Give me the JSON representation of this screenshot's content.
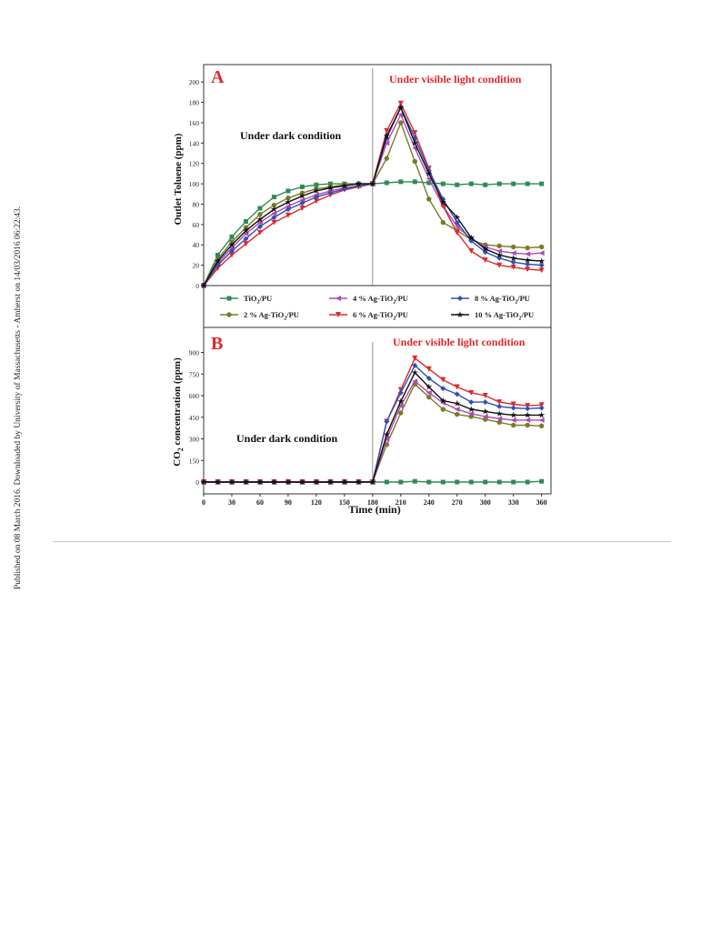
{
  "side_note": "Published on 08 March 2016. Downloaded by University of Massachusetts - Amherst on 14/03/2016 06:22:43.",
  "colors": {
    "TiO2/PU": "#2e8b57",
    "2 % Ag-TiO2/PU": "#7a7a2a",
    "4 % Ag-TiO2/PU": "#b04ab4",
    "6 % Ag-TiO2/PU": "#e0282a",
    "8 % Ag-TiO2/PU": "#3050b8",
    "10 % Ag-TiO2/PU": "#111111",
    "annotation_red": "#e0282a"
  },
  "chart_data": [
    {
      "panel": "A",
      "type": "line",
      "ylabel": "Outlet Toluene (ppm)",
      "xlabel": "",
      "annotations": [
        "Under dark condition",
        "Under visible light condition"
      ],
      "xlim": [
        0,
        370
      ],
      "ylim": [
        0,
        210
      ],
      "yticks": [
        0,
        20,
        40,
        60,
        80,
        100,
        120,
        140,
        160,
        180,
        200
      ],
      "divider_x": 180,
      "x": [
        0,
        15,
        30,
        45,
        60,
        75,
        90,
        105,
        120,
        135,
        150,
        165,
        180,
        195,
        210,
        225,
        240,
        255,
        270,
        285,
        300,
        315,
        330,
        345,
        360
      ],
      "series": [
        {
          "name": "TiO2/PU",
          "values": [
            0,
            30,
            48,
            63,
            76,
            87,
            93,
            97,
            99,
            100,
            100,
            100,
            100,
            101,
            102,
            102,
            101,
            100,
            99,
            100,
            99,
            100,
            100,
            100,
            100
          ]
        },
        {
          "name": "2 % Ag-TiO2/PU",
          "values": [
            0,
            26,
            43,
            57,
            70,
            79,
            86,
            91,
            95,
            97,
            99,
            100,
            100,
            125,
            160,
            122,
            85,
            62,
            54,
            45,
            40,
            39,
            38,
            37,
            38
          ]
        },
        {
          "name": "4 % Ag-TiO2/PU",
          "values": [
            0,
            22,
            37,
            51,
            62,
            71,
            78,
            84,
            89,
            93,
            96,
            98,
            100,
            140,
            168,
            135,
            105,
            78,
            58,
            46,
            38,
            34,
            32,
            31,
            32
          ]
        },
        {
          "name": "6 % Ag-TiO2/PU",
          "values": [
            0,
            17,
            30,
            41,
            52,
            62,
            69,
            76,
            83,
            89,
            94,
            97,
            100,
            152,
            179,
            150,
            115,
            78,
            52,
            34,
            25,
            20,
            18,
            16,
            15
          ]
        },
        {
          "name": "8 % Ag-TiO2/PU",
          "values": [
            0,
            20,
            34,
            46,
            58,
            67,
            75,
            81,
            87,
            91,
            95,
            98,
            100,
            145,
            175,
            145,
            113,
            85,
            62,
            44,
            33,
            27,
            23,
            21,
            20
          ]
        },
        {
          "name": "10 % Ag-TiO2/PU",
          "values": [
            0,
            24,
            40,
            54,
            65,
            75,
            82,
            88,
            93,
            96,
            98,
            100,
            100,
            147,
            175,
            140,
            110,
            82,
            67,
            47,
            36,
            30,
            27,
            25,
            24
          ]
        }
      ]
    },
    {
      "panel": "B",
      "type": "line",
      "ylabel": "CO2 concentration (ppm)",
      "xlabel": "Time (min)",
      "annotations": [
        "Under dark condition",
        "Under visible light condition"
      ],
      "xlim": [
        0,
        370
      ],
      "ylim": [
        0,
        960
      ],
      "xticks": [
        0,
        30,
        60,
        90,
        120,
        150,
        180,
        210,
        240,
        270,
        300,
        330,
        360
      ],
      "yticks": [
        0,
        150,
        300,
        450,
        600,
        750,
        900
      ],
      "divider_x": 180,
      "x": [
        0,
        15,
        30,
        45,
        60,
        75,
        90,
        105,
        120,
        135,
        150,
        165,
        180,
        195,
        210,
        225,
        240,
        255,
        270,
        285,
        300,
        315,
        330,
        345,
        360
      ],
      "series": [
        {
          "name": "TiO2/PU",
          "values": [
            0,
            0,
            0,
            0,
            0,
            0,
            0,
            0,
            0,
            0,
            0,
            0,
            0,
            0,
            0,
            5,
            0,
            0,
            0,
            0,
            0,
            0,
            0,
            0,
            5
          ]
        },
        {
          "name": "2 % Ag-TiO2/PU",
          "values": [
            0,
            0,
            0,
            0,
            0,
            0,
            0,
            0,
            0,
            0,
            0,
            0,
            0,
            260,
            480,
            680,
            590,
            505,
            470,
            455,
            435,
            415,
            395,
            395,
            390
          ]
        },
        {
          "name": "4 % Ag-TiO2/PU",
          "values": [
            0,
            0,
            0,
            0,
            0,
            0,
            0,
            0,
            0,
            0,
            0,
            0,
            0,
            300,
            530,
            700,
            620,
            550,
            505,
            475,
            455,
            440,
            430,
            430,
            430
          ]
        },
        {
          "name": "6 % Ag-TiO2/PU",
          "values": [
            0,
            0,
            0,
            0,
            0,
            0,
            0,
            0,
            0,
            0,
            0,
            0,
            0,
            420,
            640,
            860,
            785,
            710,
            660,
            620,
            600,
            555,
            540,
            530,
            535
          ]
        },
        {
          "name": "8 % Ag-TiO2/PU",
          "values": [
            0,
            0,
            0,
            0,
            0,
            0,
            0,
            0,
            0,
            0,
            0,
            0,
            0,
            420,
            620,
            810,
            720,
            650,
            610,
            555,
            555,
            525,
            515,
            510,
            515
          ]
        },
        {
          "name": "10 % Ag-TiO2/PU",
          "values": [
            0,
            0,
            0,
            0,
            0,
            0,
            0,
            0,
            0,
            0,
            0,
            0,
            0,
            330,
            560,
            760,
            660,
            565,
            545,
            505,
            490,
            475,
            465,
            465,
            465
          ]
        }
      ]
    }
  ],
  "legend": [
    {
      "main": "TiO",
      "sub": "2",
      "tail": "/PU",
      "series": "TiO2/PU",
      "marker": "square"
    },
    {
      "main": "4 % Ag-TiO",
      "sub": "2",
      "tail": "/PU",
      "series": "4 % Ag-TiO2/PU",
      "marker": "tri-left"
    },
    {
      "main": "8 % Ag-TiO",
      "sub": "2",
      "tail": "/PU",
      "series": "8 % Ag-TiO2/PU",
      "marker": "diamond"
    },
    {
      "main": "2 % Ag-TiO",
      "sub": "2",
      "tail": "/PU",
      "series": "2 % Ag-TiO2/PU",
      "marker": "circle"
    },
    {
      "main": "6 % Ag-TiO",
      "sub": "2",
      "tail": "/PU",
      "series": "6 % Ag-TiO2/PU",
      "marker": "tri-down"
    },
    {
      "main": "10 % Ag-TiO",
      "sub": "2",
      "tail": "/PU",
      "series": "10 % Ag-TiO2/PU",
      "marker": "star"
    }
  ],
  "panel_labels": {
    "a": "A",
    "b": "B"
  },
  "text": {
    "a_dark": "Under dark condition",
    "a_light": "Under visible light condition",
    "a_ylabel": "Outlet Toluene (ppm)",
    "b_dark": "Under dark condition",
    "b_light": "Under visible light condition",
    "b_ylabel_pre": "CO",
    "b_ylabel_sub": "2",
    "b_ylabel_post": " concentration (ppm)",
    "b_xlabel": "Time (min)"
  }
}
